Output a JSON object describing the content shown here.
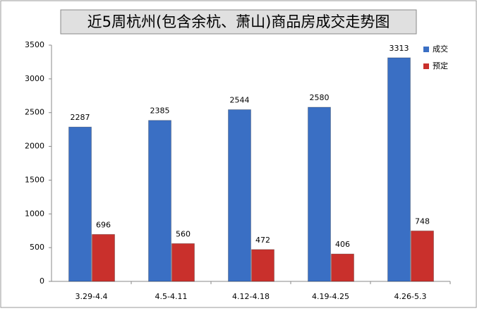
{
  "chart_data": {
    "type": "bar",
    "title": "近5周杭州(包含余杭、萧山)商品房成交走势图",
    "categories": [
      "3.29-4.4",
      "4.5-4.11",
      "4.12-4.18",
      "4.19-4.25",
      "4.26-5.3"
    ],
    "series": [
      {
        "name": "成交",
        "color": "#3a6fc4",
        "values": [
          2287,
          2385,
          2544,
          2580,
          3313
        ]
      },
      {
        "name": "预定",
        "color": "#c9302c",
        "values": [
          696,
          560,
          472,
          406,
          748
        ]
      }
    ],
    "ylim": [
      0,
      3500
    ],
    "yticks": [
      0,
      500,
      1000,
      1500,
      2000,
      2500,
      3000,
      3500
    ],
    "grid": false,
    "legend": "top-right"
  }
}
